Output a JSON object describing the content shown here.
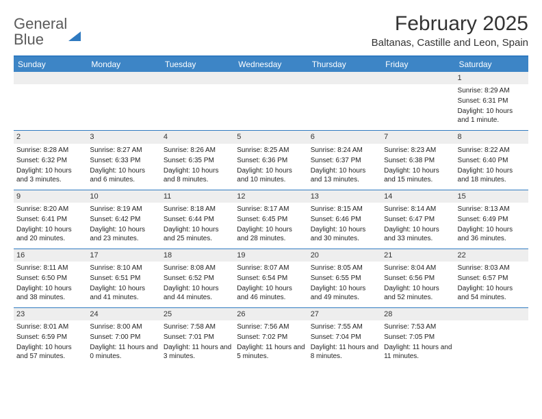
{
  "brand": {
    "word1": "General",
    "word2": "Blue"
  },
  "title": "February 2025",
  "location": "Baltanas, Castille and Leon, Spain",
  "accent_color": "#3d85c6",
  "border_color": "#2f7ac0",
  "daynum_bg": "#eeeeee",
  "background_color": "#ffffff",
  "day_headers": [
    "Sunday",
    "Monday",
    "Tuesday",
    "Wednesday",
    "Thursday",
    "Friday",
    "Saturday"
  ],
  "weeks": [
    [
      null,
      null,
      null,
      null,
      null,
      null,
      {
        "n": "1",
        "sr": "Sunrise: 8:29 AM",
        "ss": "Sunset: 6:31 PM",
        "dl": "Daylight: 10 hours and 1 minute."
      }
    ],
    [
      {
        "n": "2",
        "sr": "Sunrise: 8:28 AM",
        "ss": "Sunset: 6:32 PM",
        "dl": "Daylight: 10 hours and 3 minutes."
      },
      {
        "n": "3",
        "sr": "Sunrise: 8:27 AM",
        "ss": "Sunset: 6:33 PM",
        "dl": "Daylight: 10 hours and 6 minutes."
      },
      {
        "n": "4",
        "sr": "Sunrise: 8:26 AM",
        "ss": "Sunset: 6:35 PM",
        "dl": "Daylight: 10 hours and 8 minutes."
      },
      {
        "n": "5",
        "sr": "Sunrise: 8:25 AM",
        "ss": "Sunset: 6:36 PM",
        "dl": "Daylight: 10 hours and 10 minutes."
      },
      {
        "n": "6",
        "sr": "Sunrise: 8:24 AM",
        "ss": "Sunset: 6:37 PM",
        "dl": "Daylight: 10 hours and 13 minutes."
      },
      {
        "n": "7",
        "sr": "Sunrise: 8:23 AM",
        "ss": "Sunset: 6:38 PM",
        "dl": "Daylight: 10 hours and 15 minutes."
      },
      {
        "n": "8",
        "sr": "Sunrise: 8:22 AM",
        "ss": "Sunset: 6:40 PM",
        "dl": "Daylight: 10 hours and 18 minutes."
      }
    ],
    [
      {
        "n": "9",
        "sr": "Sunrise: 8:20 AM",
        "ss": "Sunset: 6:41 PM",
        "dl": "Daylight: 10 hours and 20 minutes."
      },
      {
        "n": "10",
        "sr": "Sunrise: 8:19 AM",
        "ss": "Sunset: 6:42 PM",
        "dl": "Daylight: 10 hours and 23 minutes."
      },
      {
        "n": "11",
        "sr": "Sunrise: 8:18 AM",
        "ss": "Sunset: 6:44 PM",
        "dl": "Daylight: 10 hours and 25 minutes."
      },
      {
        "n": "12",
        "sr": "Sunrise: 8:17 AM",
        "ss": "Sunset: 6:45 PM",
        "dl": "Daylight: 10 hours and 28 minutes."
      },
      {
        "n": "13",
        "sr": "Sunrise: 8:15 AM",
        "ss": "Sunset: 6:46 PM",
        "dl": "Daylight: 10 hours and 30 minutes."
      },
      {
        "n": "14",
        "sr": "Sunrise: 8:14 AM",
        "ss": "Sunset: 6:47 PM",
        "dl": "Daylight: 10 hours and 33 minutes."
      },
      {
        "n": "15",
        "sr": "Sunrise: 8:13 AM",
        "ss": "Sunset: 6:49 PM",
        "dl": "Daylight: 10 hours and 36 minutes."
      }
    ],
    [
      {
        "n": "16",
        "sr": "Sunrise: 8:11 AM",
        "ss": "Sunset: 6:50 PM",
        "dl": "Daylight: 10 hours and 38 minutes."
      },
      {
        "n": "17",
        "sr": "Sunrise: 8:10 AM",
        "ss": "Sunset: 6:51 PM",
        "dl": "Daylight: 10 hours and 41 minutes."
      },
      {
        "n": "18",
        "sr": "Sunrise: 8:08 AM",
        "ss": "Sunset: 6:52 PM",
        "dl": "Daylight: 10 hours and 44 minutes."
      },
      {
        "n": "19",
        "sr": "Sunrise: 8:07 AM",
        "ss": "Sunset: 6:54 PM",
        "dl": "Daylight: 10 hours and 46 minutes."
      },
      {
        "n": "20",
        "sr": "Sunrise: 8:05 AM",
        "ss": "Sunset: 6:55 PM",
        "dl": "Daylight: 10 hours and 49 minutes."
      },
      {
        "n": "21",
        "sr": "Sunrise: 8:04 AM",
        "ss": "Sunset: 6:56 PM",
        "dl": "Daylight: 10 hours and 52 minutes."
      },
      {
        "n": "22",
        "sr": "Sunrise: 8:03 AM",
        "ss": "Sunset: 6:57 PM",
        "dl": "Daylight: 10 hours and 54 minutes."
      }
    ],
    [
      {
        "n": "23",
        "sr": "Sunrise: 8:01 AM",
        "ss": "Sunset: 6:59 PM",
        "dl": "Daylight: 10 hours and 57 minutes."
      },
      {
        "n": "24",
        "sr": "Sunrise: 8:00 AM",
        "ss": "Sunset: 7:00 PM",
        "dl": "Daylight: 11 hours and 0 minutes."
      },
      {
        "n": "25",
        "sr": "Sunrise: 7:58 AM",
        "ss": "Sunset: 7:01 PM",
        "dl": "Daylight: 11 hours and 3 minutes."
      },
      {
        "n": "26",
        "sr": "Sunrise: 7:56 AM",
        "ss": "Sunset: 7:02 PM",
        "dl": "Daylight: 11 hours and 5 minutes."
      },
      {
        "n": "27",
        "sr": "Sunrise: 7:55 AM",
        "ss": "Sunset: 7:04 PM",
        "dl": "Daylight: 11 hours and 8 minutes."
      },
      {
        "n": "28",
        "sr": "Sunrise: 7:53 AM",
        "ss": "Sunset: 7:05 PM",
        "dl": "Daylight: 11 hours and 11 minutes."
      },
      null
    ]
  ]
}
